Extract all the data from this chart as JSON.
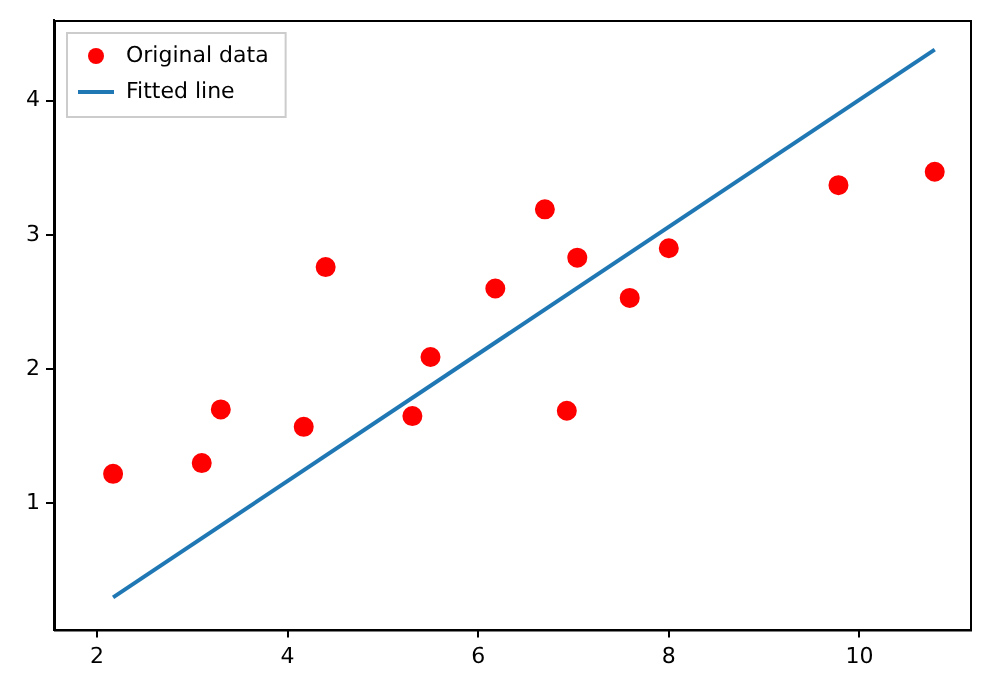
{
  "chart_data": {
    "type": "scatter",
    "legend": "top left",
    "xlim": [
      1.55,
      11.16
    ],
    "xticks": [
      2,
      4,
      6,
      8,
      10
    ],
    "ylim": [
      0.06,
      4.6
    ],
    "yticks": [
      1,
      2,
      3,
      4
    ],
    "series": [
      {
        "name": "Original data",
        "color": "#ff0000",
        "marker": "circle",
        "x": [
          3.3,
          4.4,
          5.5,
          6.7,
          6.93,
          4.17,
          9.78,
          6.18,
          7.59,
          2.17,
          7.04,
          10.79,
          5.31,
          8.0,
          3.1
        ],
        "values": [
          1.7,
          2.76,
          2.09,
          3.19,
          1.69,
          1.57,
          3.37,
          2.6,
          2.53,
          1.22,
          2.83,
          3.47,
          1.65,
          2.9,
          1.3
        ]
      },
      {
        "name": "Fitted line",
        "type": "line",
        "color": "#1f77b4",
        "line_style": "solid",
        "x": [
          2.17,
          10.79
        ],
        "values": [
          0.3,
          4.38
        ]
      }
    ]
  }
}
